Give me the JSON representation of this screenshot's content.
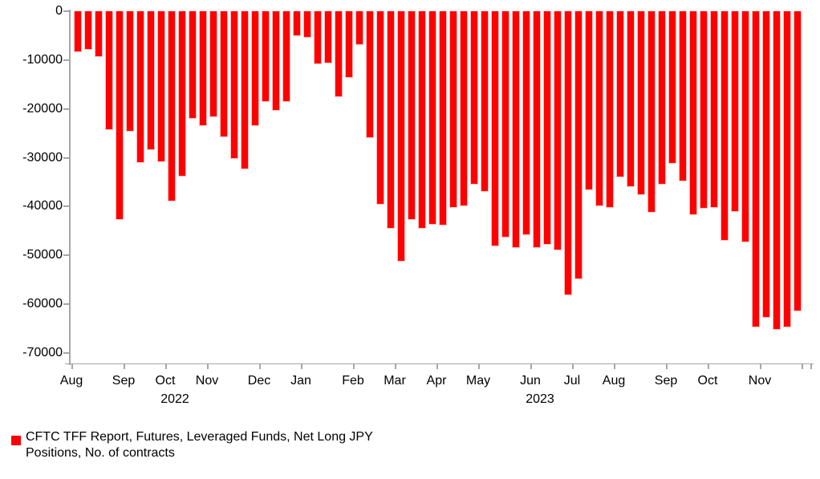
{
  "chart_data": {
    "type": "bar",
    "title": "",
    "xlabel": "",
    "ylabel": "",
    "ylim": [
      -70000,
      0
    ],
    "grid": false,
    "legend_position": "bottom-left",
    "bar_color": "#ff0000",
    "bar_edge_color": "#ffb8b8",
    "axis_color": "#a6a6a6",
    "text_color": "#000000",
    "y_ticks": [
      "0",
      "-10000",
      "-20000",
      "-30000",
      "-40000",
      "-50000",
      "-60000",
      "-70000"
    ],
    "y_tick_values": [
      0,
      -10000,
      -20000,
      -30000,
      -40000,
      -50000,
      -60000,
      -70000
    ],
    "months": [
      {
        "label": "Aug",
        "bars": 5,
        "year_label": ""
      },
      {
        "label": "Sep",
        "bars": 4,
        "year_label": ""
      },
      {
        "label": "Oct",
        "bars": 4,
        "year_label": "2022"
      },
      {
        "label": "Nov",
        "bars": 5,
        "year_label": ""
      },
      {
        "label": "Dec",
        "bars": 4,
        "year_label": ""
      },
      {
        "label": "Jan",
        "bars": 5,
        "year_label": ""
      },
      {
        "label": "Feb",
        "bars": 4,
        "year_label": ""
      },
      {
        "label": "Mar",
        "bars": 4,
        "year_label": ""
      },
      {
        "label": "Apr",
        "bars": 4,
        "year_label": ""
      },
      {
        "label": "May",
        "bars": 5,
        "year_label": ""
      },
      {
        "label": "Jun",
        "bars": 4,
        "year_label": "2023"
      },
      {
        "label": "Jul",
        "bars": 4,
        "year_label": ""
      },
      {
        "label": "Aug",
        "bars": 5,
        "year_label": ""
      },
      {
        "label": "Sep",
        "bars": 4,
        "year_label": ""
      },
      {
        "label": "Oct",
        "bars": 5,
        "year_label": ""
      },
      {
        "label": "Nov",
        "bars": 4,
        "year_label": ""
      }
    ],
    "values": [
      -8400,
      -7900,
      -9300,
      -24400,
      -42800,
      -24600,
      -31100,
      -28400,
      -30900,
      -39000,
      -33900,
      -22100,
      -23500,
      -21700,
      -25800,
      -30300,
      -32400,
      -23500,
      -18500,
      -20400,
      -18500,
      -5100,
      -5400,
      -10800,
      -10700,
      -17500,
      -13600,
      -6900,
      -25900,
      -39600,
      -44600,
      -51200,
      -42700,
      -44600,
      -43700,
      -43800,
      -40200,
      -40000,
      -35500,
      -37000,
      -48100,
      -46400,
      -48400,
      -45800,
      -48500,
      -47800,
      -48900,
      -58200,
      -54900,
      -36700,
      -39900,
      -40300,
      -34000,
      -36000,
      -37700,
      -41200,
      -35500,
      -31200,
      -34900,
      -41800,
      -40400,
      -40300,
      -47000,
      -41000,
      -47300,
      -64700,
      -62800,
      -65300,
      -64700,
      -61400
    ],
    "legend": {
      "label_line1": "CFTC TFF Report, Futures, Leveraged Funds, Net Long JPY",
      "label_line2": "Positions, No. of contracts"
    }
  }
}
